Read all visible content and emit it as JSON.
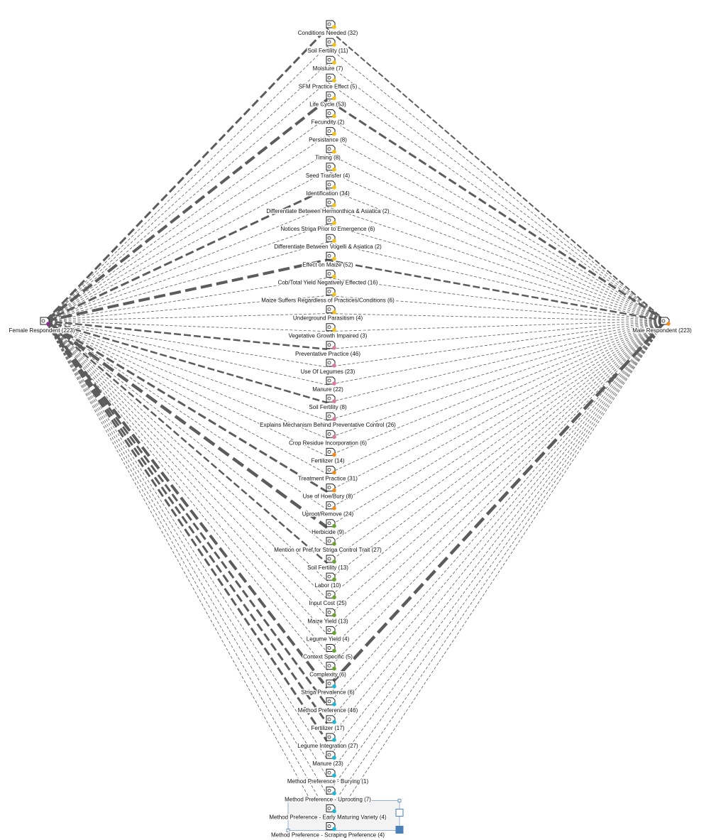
{
  "colors": {
    "edge": "#5c5c5c",
    "female": "#8b2a8f",
    "male": "#f28c1c",
    "conditions": "#f2c21b",
    "effect": "#f2c21b",
    "preventative": "#d97aa0",
    "treatment": "#f28c1c",
    "striga_trait": "#6ba32f",
    "preference": "#1fb6d4",
    "selection": "#4a7fb8"
  },
  "node_icon": "document-link-icon",
  "respondents": [
    {
      "id": "female",
      "label": "Female Respondent (223)",
      "color_key": "female"
    },
    {
      "id": "male",
      "label": "Male Respondent (223)",
      "color_key": "male"
    }
  ],
  "codes": [
    {
      "label": "Conditions Needed (32)",
      "color_key": "conditions",
      "female": 3,
      "male": 2
    },
    {
      "label": "Soil Fertility (11)",
      "color_key": "conditions",
      "female": 1,
      "male": 1
    },
    {
      "label": "Moisture (7)",
      "color_key": "conditions",
      "female": 1,
      "male": 1
    },
    {
      "label": "SFM Practice Effect (5)",
      "color_key": "conditions",
      "female": 1,
      "male": 1
    },
    {
      "label": "Life Cycle (53)",
      "color_key": "conditions",
      "female": 4,
      "male": 3
    },
    {
      "label": "Fecundity (2)",
      "color_key": "conditions",
      "female": 1,
      "male": 1
    },
    {
      "label": "Persistance (8)",
      "color_key": "conditions",
      "female": 1,
      "male": 1
    },
    {
      "label": "Timing (8)",
      "color_key": "conditions",
      "female": 1,
      "male": 1
    },
    {
      "label": "Seed Transfer (4)",
      "color_key": "conditions",
      "female": 1,
      "male": 1
    },
    {
      "label": "Identification (34)",
      "color_key": "conditions",
      "female": 3,
      "male": 1
    },
    {
      "label": "Differentiate Between Hermonthica & Asiatica (2)",
      "color_key": "conditions",
      "female": 1,
      "male": 1
    },
    {
      "label": "Notices Striga Prior to Emergence (6)",
      "color_key": "conditions",
      "female": 1,
      "male": 1
    },
    {
      "label": "Differentiate Between Vogelli & Asiatica (2)",
      "color_key": "conditions",
      "female": 1,
      "male": 1
    },
    {
      "label": "Effect on Maize (52)",
      "color_key": "effect",
      "female": 4,
      "male": 2.5
    },
    {
      "label": "Cob/Total Yield Negatively Effected (16)",
      "color_key": "effect",
      "female": 1,
      "male": 1
    },
    {
      "label": "Maize Suffers Regardless of Practices/Conditions (6)",
      "color_key": "effect",
      "female": 1,
      "male": 1
    },
    {
      "label": "Underground Parasitism (4)",
      "color_key": "effect",
      "female": 1,
      "male": 1
    },
    {
      "label": "Vegetative Growth Impaired (3)",
      "color_key": "effect",
      "female": 1,
      "male": 1
    },
    {
      "label": "Preventative Practice (46)",
      "color_key": "preventative",
      "female": 2.5,
      "male": 1
    },
    {
      "label": "Use Of Legumes (23)",
      "color_key": "preventative",
      "female": 1,
      "male": 1
    },
    {
      "label": "Manure (22)",
      "color_key": "preventative",
      "female": 1,
      "male": 1
    },
    {
      "label": "Soil Fertility (8)",
      "color_key": "preventative",
      "female": 2.5,
      "male": 1
    },
    {
      "label": "Explains Mechanism Behind Preventative Control (26)",
      "color_key": "preventative",
      "female": 1,
      "male": 1
    },
    {
      "label": "Crop Residue Incorporation (6)",
      "color_key": "preventative",
      "female": 1,
      "male": 1
    },
    {
      "label": "Fertilizer (14)",
      "color_key": "treatment",
      "female": 1,
      "male": 1
    },
    {
      "label": "Treatment Practice (31)",
      "color_key": "treatment",
      "female": 1,
      "male": 1
    },
    {
      "label": "Use of Hoe/Bury (8)",
      "color_key": "treatment",
      "female": 3,
      "male": 1
    },
    {
      "label": "Uproot/Remove (24)",
      "color_key": "treatment",
      "female": 1,
      "male": 1
    },
    {
      "label": "Herbicide (9)",
      "color_key": "striga_trait",
      "female": 4.5,
      "male": 1
    },
    {
      "label": "Mention or Pref for Striga Control Trait (27)",
      "color_key": "striga_trait",
      "female": 1,
      "male": 1
    },
    {
      "label": "Soil Fertility (13)",
      "color_key": "striga_trait",
      "female": 2.5,
      "male": 1
    },
    {
      "label": "Labor (10)",
      "color_key": "striga_trait",
      "female": 1,
      "male": 1
    },
    {
      "label": "Input Cost (25)",
      "color_key": "striga_trait",
      "female": 1,
      "male": 1
    },
    {
      "label": "Maize Yield (13)",
      "color_key": "striga_trait",
      "female": 1,
      "male": 1
    },
    {
      "label": "Legume Yield (4)",
      "color_key": "striga_trait",
      "female": 1,
      "male": 1
    },
    {
      "label": "Context Specific (5)",
      "color_key": "striga_trait",
      "female": 1,
      "male": 1
    },
    {
      "label": "Complexity (6)",
      "color_key": "striga_trait",
      "female": 1,
      "male": 1
    },
    {
      "label": "Striga Prevalence (6)",
      "color_key": "preference",
      "female": 4,
      "male": 4.5
    },
    {
      "label": "Method Preference (46)",
      "color_key": "preference",
      "female": 3,
      "male": 1
    },
    {
      "label": "Fertilizer (17)",
      "color_key": "preference",
      "female": 3,
      "male": 1
    },
    {
      "label": "Legume Integration (27)",
      "color_key": "preference",
      "female": 3,
      "male": 1
    },
    {
      "label": "Manure (23)",
      "color_key": "preference",
      "female": 1,
      "male": 1
    },
    {
      "label": "Method Preference - Burying (1)",
      "color_key": "preference",
      "female": 1,
      "male": 1
    },
    {
      "label": "Method Preference - Uprooting (7)",
      "color_key": "preference",
      "female": 1,
      "male": 1
    },
    {
      "label": "Method Preference - Early Maturing Variety (4)",
      "color_key": "preference",
      "female": 1,
      "male": 1
    },
    {
      "label": "Method Preference - Scraping Preference (4)",
      "color_key": "preference",
      "female": 1,
      "male": 1
    }
  ]
}
